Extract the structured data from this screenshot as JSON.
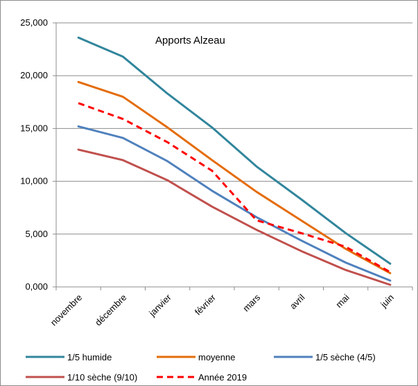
{
  "chart_data": {
    "type": "line",
    "title": "Apports Alzeau",
    "categories": [
      "novembre",
      "décembre",
      "janvier",
      "février",
      "mars",
      "avril",
      "mai",
      "juin"
    ],
    "ylim": [
      0,
      25
    ],
    "yticks": [
      "0,000",
      "5,000",
      "10,000",
      "15,000",
      "20,000",
      "25,000"
    ],
    "grid": "horizontal",
    "legend_position": "bottom",
    "series": [
      {
        "name": "1/5 humide",
        "color": "#31859C",
        "style": "solid",
        "values": [
          23.6,
          21.8,
          18.3,
          15.1,
          11.4,
          8.3,
          5.1,
          2.2
        ]
      },
      {
        "name": "moyenne",
        "color": "#E46C0A",
        "style": "solid",
        "values": [
          19.4,
          18.0,
          15.1,
          12.0,
          9.0,
          6.3,
          3.6,
          1.3
        ]
      },
      {
        "name": "1/5 sèche (4/5)",
        "color": "#4F81BD",
        "style": "solid",
        "values": [
          15.2,
          14.1,
          11.9,
          9.1,
          6.6,
          4.4,
          2.3,
          0.6
        ]
      },
      {
        "name": "1/10 sèche (9/10)",
        "color": "#C0504D",
        "style": "solid",
        "values": [
          13.0,
          12.0,
          10.1,
          7.6,
          5.4,
          3.4,
          1.6,
          0.2
        ]
      },
      {
        "name": "Année 2019",
        "color": "#FF0000",
        "style": "dashed",
        "values": [
          17.4,
          15.9,
          13.7,
          11.0,
          6.3,
          5.1,
          3.8,
          1.4
        ]
      }
    ]
  }
}
